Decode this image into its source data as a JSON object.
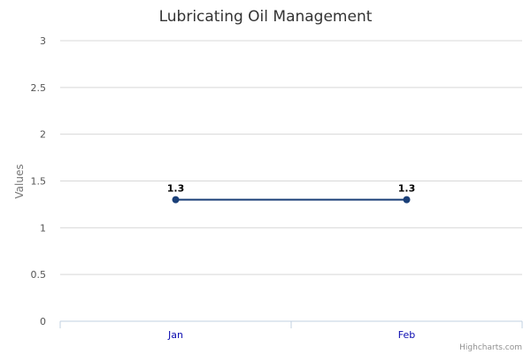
{
  "chart_data": {
    "type": "line",
    "title": "Lubricating Oil Management",
    "xlabel": "",
    "ylabel": "Values",
    "categories": [
      "Jan",
      "Feb"
    ],
    "series": [
      {
        "values": [
          1.3,
          1.3
        ]
      }
    ],
    "data_labels": [
      "1.3",
      "1.3"
    ],
    "ylim": [
      0,
      3
    ],
    "yticks": [
      0,
      0.5,
      1,
      1.5,
      2,
      2.5,
      3
    ],
    "ytick_labels": [
      "0",
      "0.5",
      "1",
      "1.5",
      "2",
      "2.5",
      "3"
    ],
    "grid": true,
    "legend": "none",
    "series_color": "#1a3f78",
    "credits": "Highcharts.com"
  }
}
